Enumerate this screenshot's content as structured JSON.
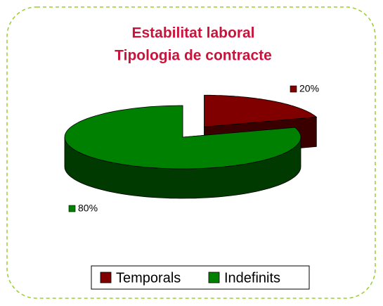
{
  "chart_data": {
    "type": "pie",
    "title": "Estabilitat laboral",
    "subtitle": "Tipologia de contracte",
    "categories": [
      "Temporals",
      "Indefinits"
    ],
    "values": [
      20,
      80
    ],
    "value_labels": [
      "20%",
      "80%"
    ],
    "colors": [
      "#800000",
      "#008000"
    ],
    "legend": "bottom",
    "three_d": true
  }
}
